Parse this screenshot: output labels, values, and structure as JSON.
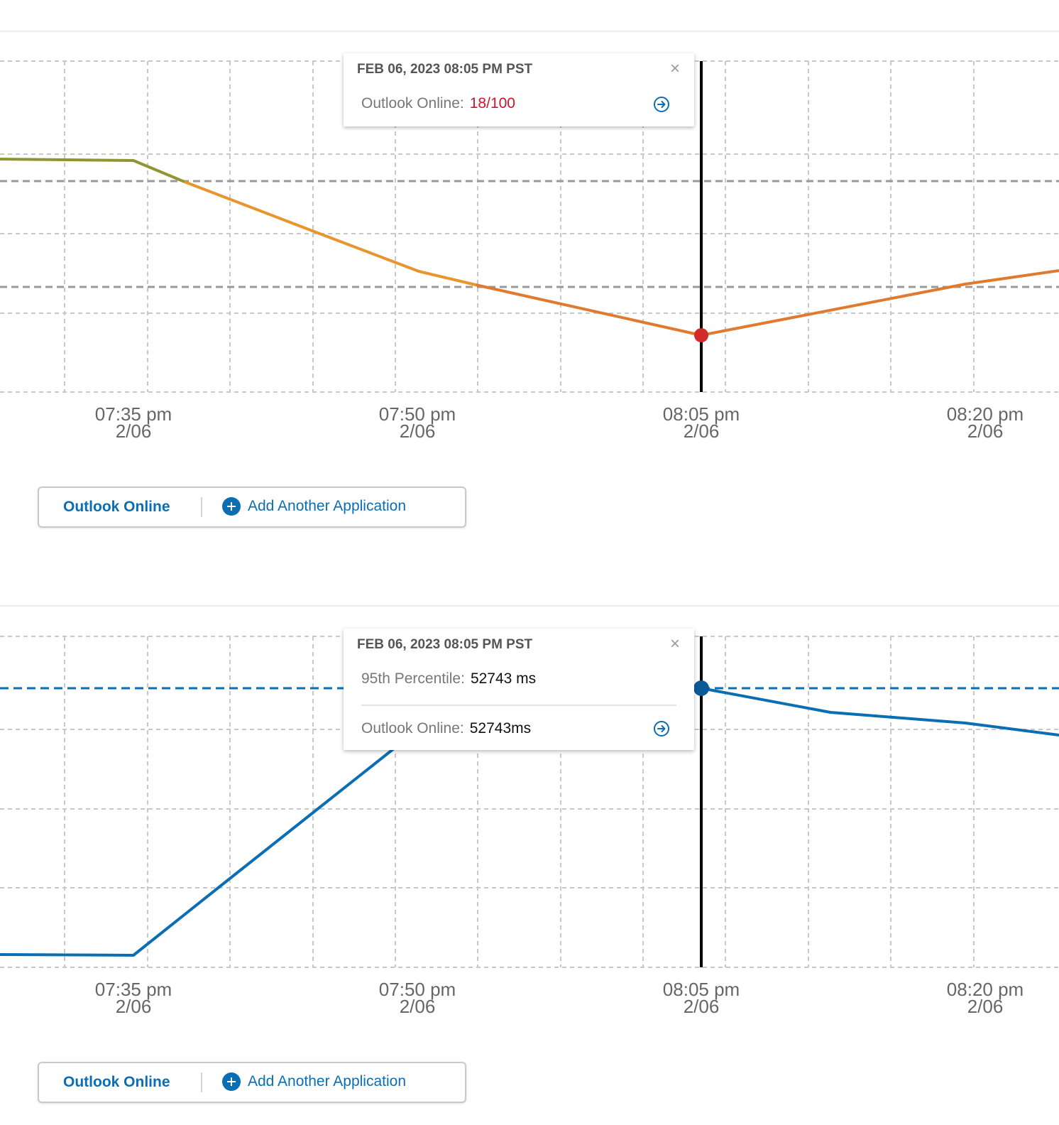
{
  "charts": [
    {
      "tooltip": {
        "date": "FEB 06, 2023 08:05 PM PST",
        "rows": [
          {
            "label": "Outlook Online:",
            "value": "18/100"
          }
        ],
        "value_color": "#d0142c"
      },
      "app_bar": {
        "app_label": "Outlook Online",
        "add_label": "Add Another Application"
      }
    },
    {
      "tooltip": {
        "date": "FEB 06, 2023 08:05 PM PST",
        "rows": [
          {
            "label": "95th Percentile:",
            "value": "52743 ms"
          },
          {
            "label": "Outlook Online:",
            "value": "52743ms"
          }
        ]
      },
      "app_bar": {
        "app_label": "Outlook Online",
        "add_label": "Add Another Application"
      }
    }
  ],
  "chart_data": [
    {
      "type": "line",
      "x_ticks": [
        {
          "time": "07:35 pm",
          "date": "2/06"
        },
        {
          "time": "07:50 pm",
          "date": "2/06"
        },
        {
          "time": "08:05 pm",
          "date": "2/06"
        },
        {
          "time": "08:20 pm",
          "date": "2/06"
        }
      ],
      "selected_x": "08:05 pm",
      "selected_value": 18,
      "grid": true,
      "colors": {
        "line_start": "#8f9530",
        "line_mid": "#e8952e",
        "line_end": "#e07a2e",
        "marker": "#d42a2a"
      }
    },
    {
      "type": "line",
      "x_ticks": [
        {
          "time": "07:35 pm",
          "date": "2/06"
        },
        {
          "time": "07:50 pm",
          "date": "2/06"
        },
        {
          "time": "08:05 pm",
          "date": "2/06"
        },
        {
          "time": "08:20 pm",
          "date": "2/06"
        }
      ],
      "selected_x": "08:05 pm",
      "selected_value": 52743,
      "reference_line": {
        "label": "95th Percentile",
        "value": 52743
      },
      "grid": true,
      "colors": {
        "line": "#0a6eb4",
        "marker": "#0a5a96"
      }
    }
  ]
}
